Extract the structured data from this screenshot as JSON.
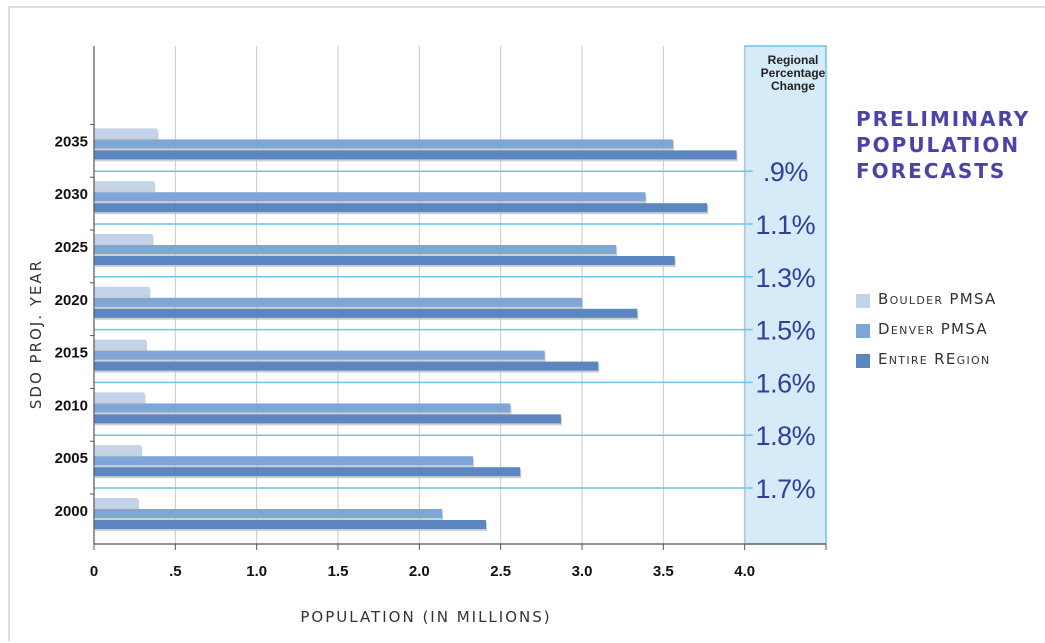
{
  "title_lines": [
    "PRELIMINARY",
    "POPULATION",
    "FORECASTS"
  ],
  "colors": {
    "boulder": "#c3d3ea",
    "denver": "#7fa6d8",
    "region": "#5b86c0",
    "pct_band": "#d5ebf7",
    "pct_band_border": "#6cc4e8",
    "pct_text": "#2e3f9c",
    "title": "#4a44a8",
    "grid": "#c9c9c9"
  },
  "chart_data": {
    "type": "bar",
    "orientation": "horizontal",
    "ylabel": "SDO Proj. Year",
    "xlabel": "Population (in millions)",
    "categories": [
      "2000",
      "2005",
      "2010",
      "2015",
      "2020",
      "2025",
      "2030",
      "2035"
    ],
    "xlim": [
      0,
      4.5
    ],
    "x_ticks": [
      0,
      0.5,
      1.0,
      1.5,
      2.0,
      2.5,
      3.0,
      3.5,
      4.0
    ],
    "x_tick_labels": [
      "0",
      ".5",
      "1.0",
      "1.5",
      "2.0",
      "2.5",
      "3.0",
      "3.5",
      "4.0"
    ],
    "series": [
      {
        "name": "Boulder PMSA",
        "color_key": "boulder",
        "values": [
          0.27,
          0.29,
          0.31,
          0.32,
          0.34,
          0.36,
          0.37,
          0.39
        ]
      },
      {
        "name": "Denver PMSA",
        "color_key": "denver",
        "values": [
          2.14,
          2.33,
          2.56,
          2.77,
          3.0,
          3.21,
          3.39,
          3.56
        ]
      },
      {
        "name": "Entire REgion",
        "color_key": "region",
        "values": [
          2.41,
          2.62,
          2.87,
          3.1,
          3.34,
          3.57,
          3.77,
          3.95
        ]
      }
    ],
    "percentage_column": {
      "header_lines": [
        "Regional",
        "Percentage",
        "Change"
      ],
      "values": [
        "1.7%",
        "1.8%",
        "1.6%",
        "1.5%",
        "1.3%",
        "1.1%",
        ".9%"
      ]
    },
    "legend_position": "right",
    "grid": true
  }
}
